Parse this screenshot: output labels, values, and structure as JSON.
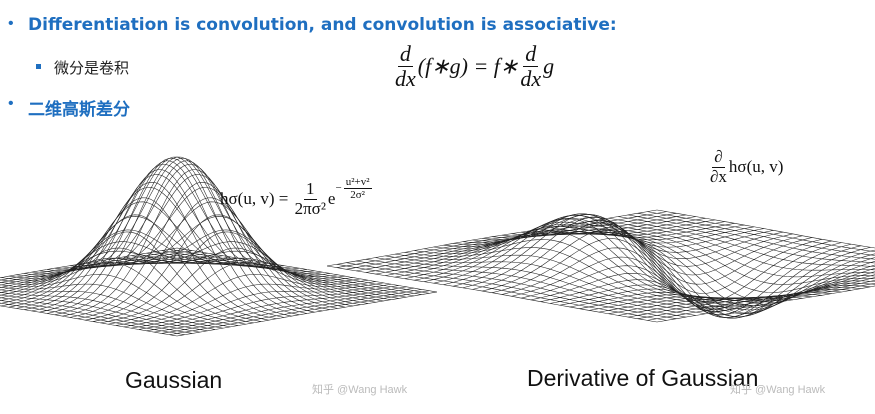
{
  "bullets": [
    {
      "text": "Differentiation is convolution, and convolution is associative:",
      "sub": [
        {
          "text": "微分是卷积"
        }
      ]
    },
    {
      "text": "二维高斯差分"
    }
  ],
  "formula": {
    "d1": "d",
    "dx1": "dx",
    "middle": "(f∗g) = f∗",
    "d2": "d",
    "dx2": "dx",
    "end": "g"
  },
  "figures": [
    {
      "caption": "Gaussian",
      "formula": {
        "lhs": "hσ(u, v) =",
        "num": "1",
        "den": "2πσ²",
        "base": "e",
        "sign": "−",
        "exp_num": "u²+v²",
        "exp_den": "2σ²"
      }
    },
    {
      "caption": "Derivative of Gaussian",
      "formula": {
        "num": "∂",
        "den": "∂x",
        "rest": "hσ(u, v)"
      }
    }
  ],
  "watermark": "知乎 @Wang Hawk"
}
